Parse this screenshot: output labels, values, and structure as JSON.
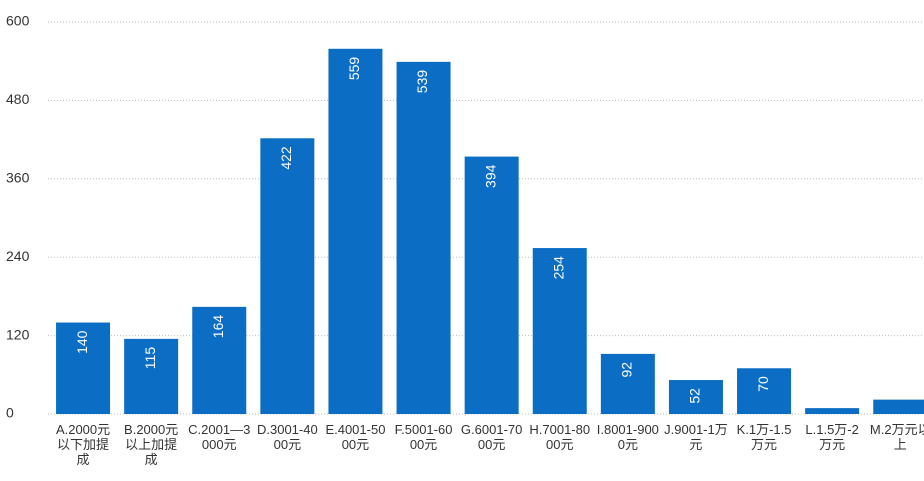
{
  "chart_data": {
    "type": "bar",
    "categories": [
      "A.2000元以下加提成",
      "B.2000元以上加提成",
      "C.2001—3000元",
      "D.3001-4000元",
      "E.4001-5000元",
      "F.5001-6000元",
      "G.6001-7000元",
      "H.7001-8000元",
      "I.8001-9000元",
      "J.9001-1万元",
      "K.1万-1.5万元",
      "L.1.5万-2万元",
      "M.2万元以上"
    ],
    "values": [
      140,
      115,
      164,
      422,
      559,
      539,
      394,
      254,
      92,
      52,
      70,
      9,
      22
    ],
    "color": "#0b6dc3",
    "ylim": [
      0,
      600
    ],
    "yticks": [
      0,
      120,
      240,
      360,
      480,
      600
    ],
    "grid": true
  }
}
